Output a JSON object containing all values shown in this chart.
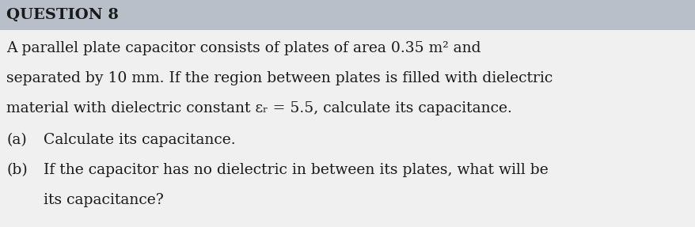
{
  "title": "QUESTION 8",
  "title_fontsize": 14,
  "title_bg_color": "#b8bfc8",
  "body_bg_color": "#e8e8e8",
  "text_bg_color": "#f5f5f5",
  "line1": "A parallel plate capacitor consists of plates of area 0.35 m² and",
  "line2": "separated by 10 mm. If the region between plates is filled with dielectric",
  "line3": "material with dielectric constant εᵣ = 5.5, calculate its capacitance.",
  "line4a_label": "(a)",
  "line4a_text": "Calculate its capacitance.",
  "line5b_label": "(b)",
  "line5b_text": "If the capacitor has no dielectric in between its plates, what will be",
  "line6_text": "its capacitance?",
  "body_fontsize": 13.5,
  "text_color": "#1a1a1a",
  "font_family": "serif"
}
